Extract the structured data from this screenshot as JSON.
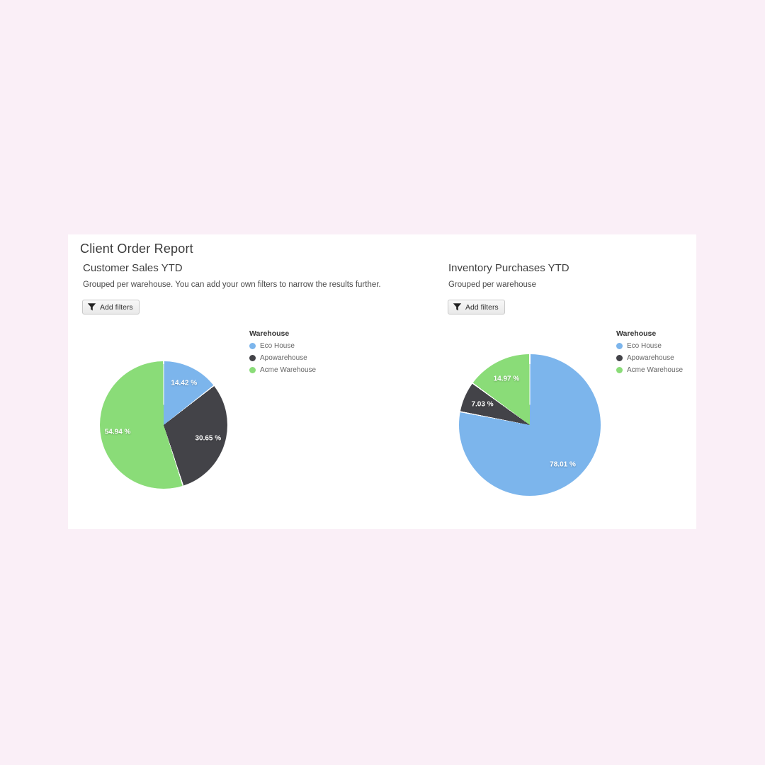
{
  "page": {
    "title": "Client Order Report",
    "background_color": "#faeff7",
    "panel_color": "#ffffff"
  },
  "cards": [
    {
      "title": "Customer Sales YTD",
      "subtitle": "Grouped per warehouse. You can add your own filters to narrow the results further.",
      "filter_button": "Add filters"
    },
    {
      "title": "Inventory Purchases YTD",
      "subtitle": "Grouped per warehouse",
      "filter_button": "Add filters"
    }
  ],
  "chart_data": [
    {
      "type": "pie",
      "title": "Customer Sales YTD",
      "series_name": "Warehouse",
      "categories": [
        "Eco House",
        "Apowarehouse",
        "Acme Warehouse"
      ],
      "values": [
        14.42,
        30.65,
        54.94
      ],
      "slice_labels": [
        "14.42 %",
        "30.65 %",
        "54.94 %"
      ],
      "unit": "%",
      "colors": [
        "#7cb5ec",
        "#434348",
        "#8adc78"
      ],
      "start_angle": 0,
      "direction": "clockwise",
      "legend_position": "right"
    },
    {
      "type": "pie",
      "title": "Inventory Purchases YTD",
      "series_name": "Warehouse",
      "categories": [
        "Eco House",
        "Apowarehouse",
        "Acme Warehouse"
      ],
      "values": [
        78.01,
        7.03,
        14.97
      ],
      "slice_labels": [
        "78.01 %",
        "7.03 %",
        "14.97 %"
      ],
      "unit": "%",
      "colors": [
        "#7cb5ec",
        "#434348",
        "#8adc78"
      ],
      "start_angle": 0,
      "direction": "clockwise",
      "legend_position": "right"
    }
  ]
}
